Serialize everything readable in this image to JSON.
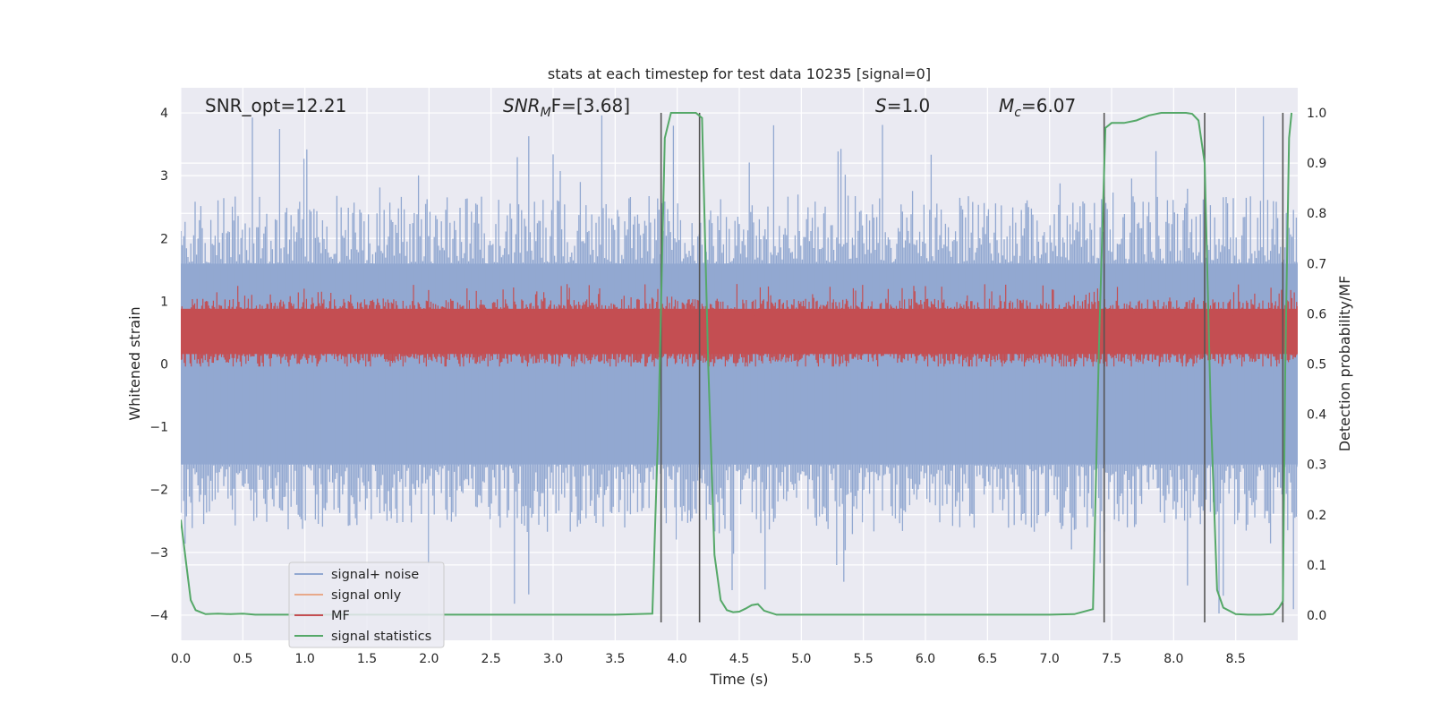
{
  "chart_data": {
    "type": "line",
    "title": "stats at each timestep for test data 10235 [signal=0]",
    "xlabel": "Time (s)",
    "ylabel": "Whitened strain",
    "y2label": "Detection probability/MF",
    "xlim": [
      0.0,
      9.0
    ],
    "ylim": [
      -4.4,
      4.4
    ],
    "y2lim": [
      -0.05,
      1.05
    ],
    "xticks": [
      "0.0",
      "0.5",
      "1.0",
      "1.5",
      "2.0",
      "2.5",
      "3.0",
      "3.5",
      "4.0",
      "4.5",
      "5.0",
      "5.5",
      "6.0",
      "6.5",
      "7.0",
      "7.5",
      "8.0",
      "8.5"
    ],
    "yticks": [
      "4",
      "3",
      "2",
      "1",
      "0",
      "−1",
      "−2",
      "−3",
      "−4"
    ],
    "y2ticks": [
      "1.0",
      "0.9",
      "0.8",
      "0.7",
      "0.6",
      "0.5",
      "0.4",
      "0.3",
      "0.2",
      "0.1",
      "0.0"
    ],
    "grid": true,
    "legend_position": "lower-left",
    "annotations": {
      "snr_opt": "SNR_opt=12.21",
      "snr_mf_main": "SNR",
      "snr_mf_sub": "M",
      "snr_mf_rest": "F=[3.68]",
      "s_main": "S",
      "s_rest": "=1.0",
      "mc_main": "M",
      "mc_sub": "c",
      "mc_rest": "=6.07"
    },
    "series": [
      {
        "name": "signal+ noise",
        "color": "#92a8d1",
        "axis": "left",
        "envelope": {
          "core_amplitude": 1.6,
          "typical_peak": 2.5,
          "max_peak": 4.0
        }
      },
      {
        "name": "signal only",
        "color": "#e8a98a",
        "axis": "left",
        "values": []
      },
      {
        "name": "MF",
        "color": "#c44e52",
        "axis": "right",
        "band": [
          0.5,
          0.63
        ]
      },
      {
        "name": "signal statistics",
        "color": "#55a868",
        "axis": "right",
        "x": [
          0.0,
          0.08,
          0.12,
          0.2,
          0.3,
          0.4,
          0.5,
          0.6,
          1.0,
          2.0,
          3.0,
          3.5,
          3.8,
          3.85,
          3.9,
          3.95,
          4.0,
          4.05,
          4.1,
          4.15,
          4.2,
          4.25,
          4.3,
          4.35,
          4.4,
          4.45,
          4.5,
          4.55,
          4.6,
          4.65,
          4.7,
          4.8,
          5.0,
          6.0,
          7.0,
          7.2,
          7.35,
          7.4,
          7.45,
          7.5,
          7.6,
          7.7,
          7.8,
          7.9,
          8.0,
          8.1,
          8.15,
          8.2,
          8.25,
          8.3,
          8.35,
          8.4,
          8.5,
          8.6,
          8.7,
          8.8,
          8.85,
          8.88,
          8.9,
          8.93,
          8.95
        ],
        "y": [
          0.19,
          0.03,
          0.01,
          0.002,
          0.003,
          0.002,
          0.003,
          0.001,
          0.001,
          0.001,
          0.001,
          0.001,
          0.003,
          0.4,
          0.95,
          1.0,
          1.0,
          1.0,
          1.0,
          1.0,
          0.99,
          0.5,
          0.12,
          0.03,
          0.01,
          0.006,
          0.007,
          0.013,
          0.02,
          0.022,
          0.009,
          0.001,
          0.001,
          0.001,
          0.001,
          0.002,
          0.012,
          0.55,
          0.97,
          0.98,
          0.98,
          0.985,
          0.995,
          1.0,
          1.0,
          1.0,
          0.998,
          0.985,
          0.9,
          0.4,
          0.05,
          0.015,
          0.002,
          0.001,
          0.001,
          0.002,
          0.015,
          0.028,
          0.5,
          0.95,
          1.0
        ]
      }
    ],
    "vlines": [
      3.87,
      4.18,
      7.44,
      8.25,
      8.88
    ]
  }
}
